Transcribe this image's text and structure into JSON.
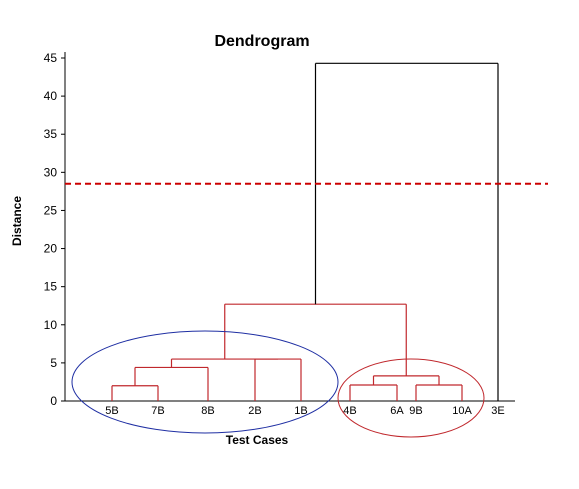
{
  "chart_data": {
    "type": "dendrogram",
    "title": "Dendrogram",
    "xlabel": "Test Cases",
    "ylabel": "Distance",
    "ylim": [
      0,
      45
    ],
    "yticks": [
      0,
      5,
      10,
      15,
      20,
      25,
      30,
      35,
      40,
      45
    ],
    "grid": false,
    "leaves": [
      "5B",
      "7B",
      "8B",
      "2B",
      "1B",
      "4B",
      "6A",
      "9B",
      "10A",
      "3E"
    ],
    "merges": [
      {
        "left": "5B",
        "right": "7B",
        "height": 2.0,
        "color": "#c0282d"
      },
      {
        "left": "5B+7B",
        "right": "8B",
        "height": 4.4,
        "color": "#c0282d"
      },
      {
        "left": "2B",
        "right": "1B",
        "height": 5.5,
        "color": "#c0282d"
      },
      {
        "left": "5B+7B+8B",
        "right": "2B+1B",
        "height": 5.5,
        "color": "#c0282d"
      },
      {
        "left": "4B",
        "right": "6A",
        "height": 2.1,
        "color": "#c0282d"
      },
      {
        "left": "9B",
        "right": "10A",
        "height": 2.1,
        "color": "#c0282d"
      },
      {
        "left": "4B+6A",
        "right": "9B+10A",
        "height": 3.3,
        "color": "#c0282d"
      },
      {
        "left": "blue-group",
        "right": "red-group",
        "height": 12.7,
        "color": "#c0282d"
      },
      {
        "left": "all-red",
        "right": "3E",
        "height": 44.3,
        "color": "#000000"
      }
    ],
    "cutoff": {
      "value": 28.5,
      "style": "dashed",
      "color": "#cc0000"
    },
    "groups": [
      {
        "members": [
          "5B",
          "7B",
          "8B",
          "2B",
          "1B"
        ],
        "outline_color": "#1f2fa3"
      },
      {
        "members": [
          "4B",
          "6A",
          "9B",
          "10A"
        ],
        "outline_color": "#c0282d"
      }
    ],
    "colors": {
      "cluster": "#c0282d",
      "top": "#000000",
      "cutoff": "#cc0000",
      "blue_ellipse": "#1f2fa3",
      "red_ellipse": "#c0282d"
    }
  }
}
